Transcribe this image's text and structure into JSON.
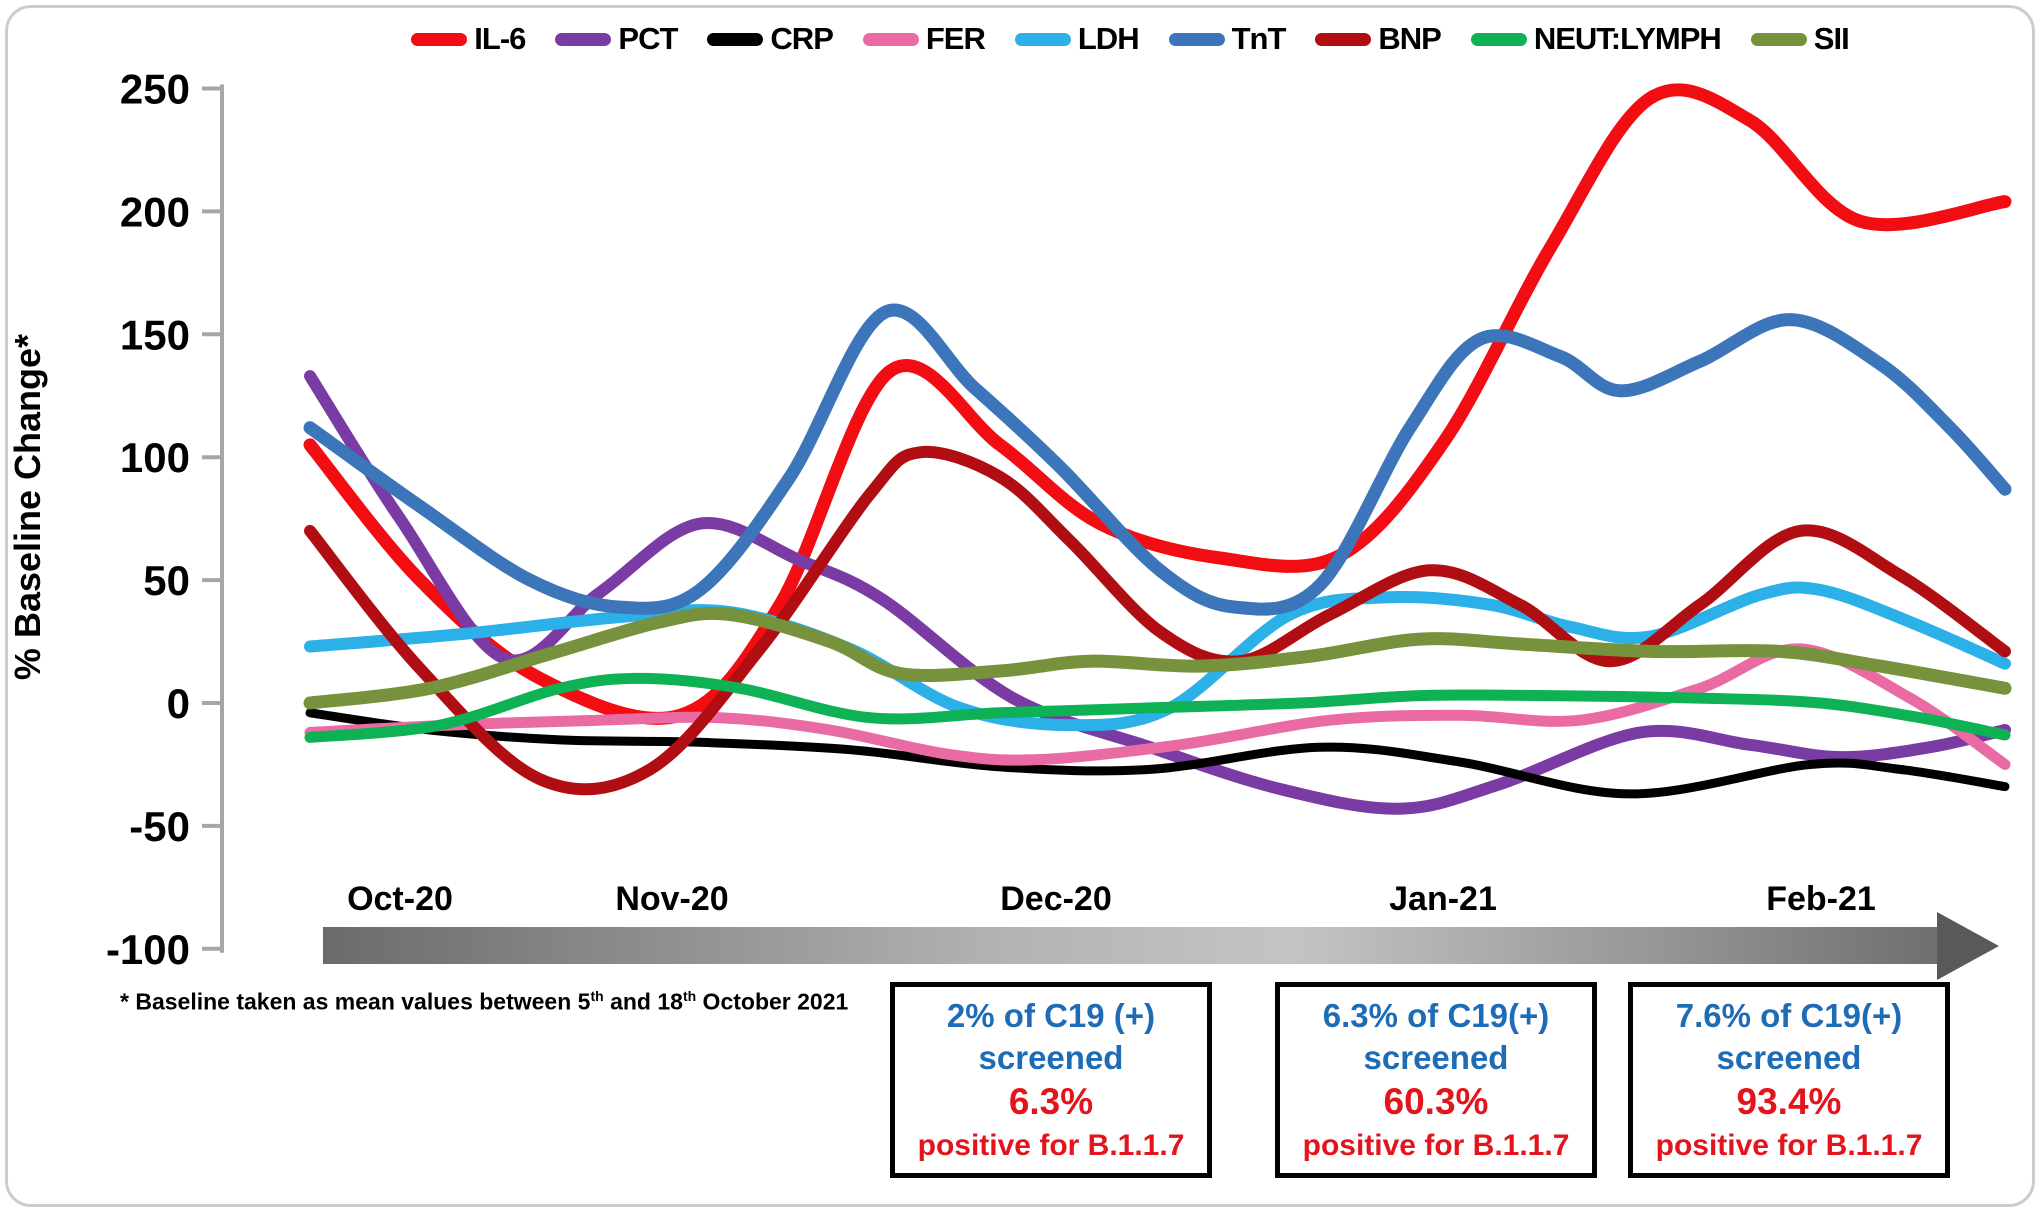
{
  "colors": {
    "frame_gray": "#c9ccd0",
    "axis_gray": "#a6a6a6",
    "annotation_blue": "#1e6cb5",
    "annotation_red": "#e3141b",
    "arrow_gray_dark": "#6b6b6b",
    "arrow_gray_light": "#c4c4c4"
  },
  "footnote": {
    "lead": "* Baseline taken as mean  values between 5",
    "sup1": "th",
    "mid": " and 18",
    "sup2": "th",
    "tail": " October 2021"
  },
  "annotations": [
    {
      "screened_pct": "2% of C19 (+)",
      "screened_word": "screened",
      "positive_pct": "6.3%",
      "positive_label": "positive for B.1.1.7"
    },
    {
      "screened_pct": "6.3% of C19(+)",
      "screened_word": "screened",
      "positive_pct": "60.3%",
      "positive_label": "positive for B.1.1.7"
    },
    {
      "screened_pct": "7.6% of C19(+)",
      "screened_word": "screened",
      "positive_pct": "93.4%",
      "positive_label": "positive for B.1.1.7"
    }
  ],
  "chart_data": {
    "type": "line",
    "title": "",
    "ylabel": "% Baseline Change*",
    "ylim": [
      -100,
      250
    ],
    "yticks": [
      250,
      200,
      150,
      100,
      50,
      0,
      -50,
      -100
    ],
    "grid": false,
    "legend_position": "top",
    "x_labels": [
      "Oct-20",
      "Nov-20",
      "Dec-20",
      "Jan-21",
      "Feb-21"
    ],
    "x_unit": "timeline position in px; month label centers at 400, 672, 1056, 1443, 1821; values are % baseline change",
    "series": [
      {
        "name": "IL-6",
        "color": "#f20d12",
        "width": 13,
        "points": [
          [
            310,
            105
          ],
          [
            420,
            50
          ],
          [
            540,
            10
          ],
          [
            680,
            -5
          ],
          [
            780,
            40
          ],
          [
            890,
            135
          ],
          [
            1000,
            105
          ],
          [
            1100,
            73
          ],
          [
            1220,
            59
          ],
          [
            1340,
            60
          ],
          [
            1445,
            107
          ],
          [
            1550,
            185
          ],
          [
            1650,
            246
          ],
          [
            1750,
            237
          ],
          [
            1860,
            196
          ],
          [
            2005,
            204
          ]
        ]
      },
      {
        "name": "PCT",
        "color": "#7a3ca4",
        "width": 12,
        "points": [
          [
            310,
            133
          ],
          [
            400,
            75
          ],
          [
            505,
            18
          ],
          [
            600,
            45
          ],
          [
            700,
            73
          ],
          [
            800,
            58
          ],
          [
            883,
            42
          ],
          [
            1013,
            2
          ],
          [
            1150,
            -18
          ],
          [
            1280,
            -35
          ],
          [
            1400,
            -43
          ],
          [
            1500,
            -33
          ],
          [
            1640,
            -12
          ],
          [
            1750,
            -17
          ],
          [
            1840,
            -22
          ],
          [
            1930,
            -18
          ],
          [
            2005,
            -11
          ]
        ]
      },
      {
        "name": "CRP",
        "color": "#000000",
        "width": 9,
        "points": [
          [
            310,
            -4
          ],
          [
            430,
            -11
          ],
          [
            560,
            -15
          ],
          [
            700,
            -16
          ],
          [
            850,
            -19
          ],
          [
            1000,
            -26
          ],
          [
            1150,
            -27
          ],
          [
            1320,
            -18
          ],
          [
            1460,
            -24
          ],
          [
            1630,
            -37
          ],
          [
            1810,
            -25
          ],
          [
            1900,
            -27
          ],
          [
            2005,
            -34
          ]
        ]
      },
      {
        "name": "FER",
        "color": "#ea6ba4",
        "width": 11,
        "points": [
          [
            310,
            -12
          ],
          [
            450,
            -9
          ],
          [
            600,
            -7
          ],
          [
            720,
            -6
          ],
          [
            830,
            -11
          ],
          [
            950,
            -21
          ],
          [
            1040,
            -23
          ],
          [
            1180,
            -17
          ],
          [
            1330,
            -7
          ],
          [
            1460,
            -5
          ],
          [
            1580,
            -7
          ],
          [
            1700,
            6
          ],
          [
            1800,
            22
          ],
          [
            1910,
            2
          ],
          [
            2005,
            -25
          ]
        ]
      },
      {
        "name": "LDH",
        "color": "#2bb0e8",
        "width": 12,
        "points": [
          [
            310,
            23
          ],
          [
            460,
            28
          ],
          [
            620,
            35
          ],
          [
            730,
            37
          ],
          [
            850,
            22
          ],
          [
            960,
            -2
          ],
          [
            1070,
            -9
          ],
          [
            1170,
            -2
          ],
          [
            1290,
            36
          ],
          [
            1390,
            43
          ],
          [
            1490,
            40
          ],
          [
            1570,
            31
          ],
          [
            1650,
            27
          ],
          [
            1760,
            44
          ],
          [
            1820,
            46
          ],
          [
            1910,
            33
          ],
          [
            2005,
            16
          ]
        ]
      },
      {
        "name": "TnT",
        "color": "#3c75b9",
        "width": 13,
        "points": [
          [
            310,
            112
          ],
          [
            420,
            80
          ],
          [
            530,
            50
          ],
          [
            620,
            39
          ],
          [
            700,
            46
          ],
          [
            790,
            92
          ],
          [
            885,
            159
          ],
          [
            975,
            128
          ],
          [
            1060,
            96
          ],
          [
            1160,
            54
          ],
          [
            1235,
            39
          ],
          [
            1320,
            48
          ],
          [
            1410,
            112
          ],
          [
            1480,
            148
          ],
          [
            1560,
            141
          ],
          [
            1620,
            127
          ],
          [
            1700,
            139
          ],
          [
            1790,
            156
          ],
          [
            1880,
            138
          ],
          [
            1950,
            112
          ],
          [
            2005,
            87
          ]
        ]
      },
      {
        "name": "BNP",
        "color": "#b00e13",
        "width": 12,
        "points": [
          [
            310,
            70
          ],
          [
            420,
            14
          ],
          [
            540,
            -31
          ],
          [
            650,
            -27
          ],
          [
            760,
            22
          ],
          [
            870,
            85
          ],
          [
            920,
            102
          ],
          [
            1000,
            92
          ],
          [
            1070,
            66
          ],
          [
            1160,
            29
          ],
          [
            1240,
            17
          ],
          [
            1330,
            36
          ],
          [
            1430,
            54
          ],
          [
            1520,
            40
          ],
          [
            1610,
            17
          ],
          [
            1700,
            40
          ],
          [
            1800,
            70
          ],
          [
            1900,
            52
          ],
          [
            2005,
            21
          ]
        ]
      },
      {
        "name": "NEUT:LYMPH",
        "color": "#0fb155",
        "width": 11,
        "points": [
          [
            310,
            -14
          ],
          [
            440,
            -9
          ],
          [
            560,
            6
          ],
          [
            640,
            10
          ],
          [
            740,
            6
          ],
          [
            870,
            -6
          ],
          [
            1000,
            -4
          ],
          [
            1150,
            -2
          ],
          [
            1300,
            0
          ],
          [
            1420,
            3
          ],
          [
            1550,
            3
          ],
          [
            1700,
            2
          ],
          [
            1820,
            0
          ],
          [
            1920,
            -6
          ],
          [
            2005,
            -13
          ]
        ]
      },
      {
        "name": "SII",
        "color": "#76923c",
        "width": 13,
        "points": [
          [
            310,
            0
          ],
          [
            430,
            6
          ],
          [
            550,
            20
          ],
          [
            660,
            33
          ],
          [
            730,
            36
          ],
          [
            830,
            25
          ],
          [
            900,
            12
          ],
          [
            1000,
            13
          ],
          [
            1090,
            17
          ],
          [
            1200,
            15
          ],
          [
            1310,
            19
          ],
          [
            1420,
            26
          ],
          [
            1520,
            24
          ],
          [
            1650,
            21
          ],
          [
            1780,
            21
          ],
          [
            1880,
            15
          ],
          [
            2005,
            6
          ]
        ]
      }
    ]
  }
}
